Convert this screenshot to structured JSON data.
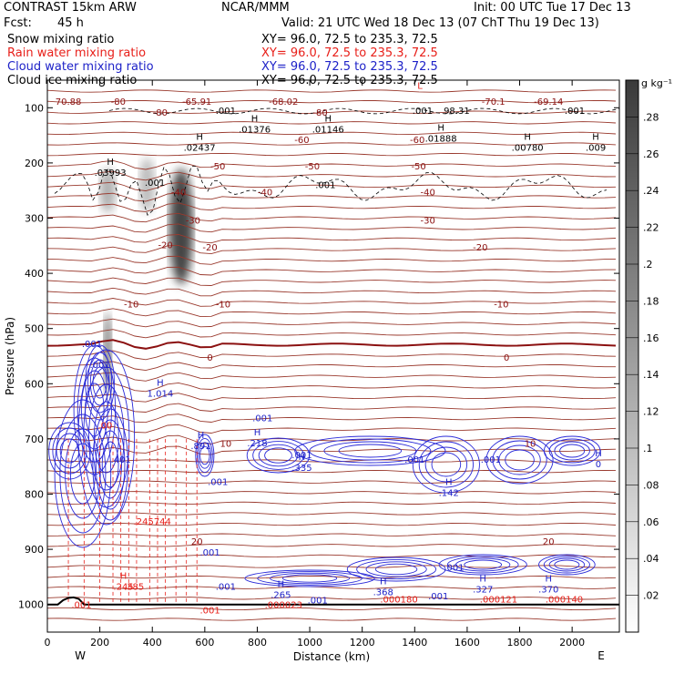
{
  "header": {
    "model": "CONTRAST 15km ARW",
    "org": "NCAR/MMM",
    "init": "Init: 00 UTC Tue 17 Dec 13",
    "fcst_label": "Fcst:",
    "fcst_value": "45 h",
    "valid": "Valid: 21 UTC Wed 18 Dec 13 (07 ChT Thu 19 Dec 13)"
  },
  "fields": [
    {
      "name": "Snow mixing ratio",
      "color": "#000000",
      "xs": "XY=   96.0, 72.5 to 235.3, 72.5"
    },
    {
      "name": "Rain water mixing ratio",
      "color": "#e8201a",
      "xs": "XY=   96.0, 72.5 to 235.3, 72.5"
    },
    {
      "name": "Cloud water mixing ratio",
      "color": "#1e22c8",
      "xs": "XY=   96.0, 72.5 to 235.3, 72.5"
    },
    {
      "name": "Cloud ice mixing ratio",
      "color": "#000000",
      "xs": "XY=   96.0, 72.5 to 235.3, 72.5"
    }
  ],
  "chart_data": {
    "type": "contour",
    "xlabel": "Distance (km)",
    "ylabel": "Pressure (hPa)",
    "xlim": [
      0,
      2180
    ],
    "ylim": [
      1050,
      50
    ],
    "x_ticks": [
      0,
      200,
      400,
      600,
      800,
      1000,
      1200,
      1400,
      1600,
      1800,
      2000
    ],
    "y_ticks": [
      100,
      200,
      300,
      400,
      500,
      600,
      700,
      800,
      900,
      1000
    ],
    "x_end_labels": {
      "left": "W",
      "right": "E"
    },
    "colorbar": {
      "unit": "g kg⁻¹",
      "ticks": [
        ".02",
        ".04",
        ".06",
        ".08",
        ".1",
        ".12",
        ".14",
        ".16",
        ".18",
        ".2",
        ".22",
        ".24",
        ".26",
        ".28"
      ]
    },
    "temperature_contour_labels": [
      {
        "x": 80,
        "p": 88,
        "text": "70.88"
      },
      {
        "x": 270,
        "p": 88,
        "text": "-80"
      },
      {
        "x": 570,
        "p": 88,
        "text": "-65.91"
      },
      {
        "x": 900,
        "p": 88,
        "text": "-68.02"
      },
      {
        "x": 1700,
        "p": 88,
        "text": "-70.1"
      },
      {
        "x": 1910,
        "p": 88,
        "text": "-69.14"
      },
      {
        "x": 430,
        "p": 108,
        "text": "-80"
      },
      {
        "x": 1040,
        "p": 108,
        "text": "-80"
      },
      {
        "x": 970,
        "p": 157,
        "text": "-60"
      },
      {
        "x": 1410,
        "p": 157,
        "text": "-60"
      },
      {
        "x": 650,
        "p": 205,
        "text": "-50"
      },
      {
        "x": 1010,
        "p": 205,
        "text": "-50"
      },
      {
        "x": 1415,
        "p": 205,
        "text": "-50"
      },
      {
        "x": 500,
        "p": 252,
        "text": "-40"
      },
      {
        "x": 830,
        "p": 252,
        "text": "-40"
      },
      {
        "x": 1450,
        "p": 252,
        "text": "-40"
      },
      {
        "x": 555,
        "p": 303,
        "text": "-30"
      },
      {
        "x": 1450,
        "p": 303,
        "text": "-30"
      },
      {
        "x": 450,
        "p": 348,
        "text": "-20"
      },
      {
        "x": 620,
        "p": 352,
        "text": "-20"
      },
      {
        "x": 1650,
        "p": 352,
        "text": "-20"
      },
      {
        "x": 320,
        "p": 455,
        "text": "-10"
      },
      {
        "x": 670,
        "p": 455,
        "text": "-10"
      },
      {
        "x": 1730,
        "p": 455,
        "text": "-10"
      },
      {
        "x": 620,
        "p": 552,
        "text": "0"
      },
      {
        "x": 1750,
        "p": 552,
        "text": "0"
      },
      {
        "x": 680,
        "p": 708,
        "text": "10"
      },
      {
        "x": 1840,
        "p": 708,
        "text": "10"
      },
      {
        "x": 570,
        "p": 885,
        "text": "20"
      },
      {
        "x": 1910,
        "p": 885,
        "text": "20"
      }
    ],
    "maxima_labels": [
      {
        "x": 790,
        "p": 132,
        "h": "H",
        "v": ".01376",
        "color": "#000000"
      },
      {
        "x": 1070,
        "p": 132,
        "h": "H",
        "v": ".01146",
        "color": "#000000"
      },
      {
        "x": 1500,
        "p": 148,
        "h": "H",
        "v": ".01888",
        "color": "#000000"
      },
      {
        "x": 1830,
        "p": 165,
        "h": "H",
        "v": ".00780",
        "color": "#000000"
      },
      {
        "x": 2090,
        "p": 165,
        "h": "H",
        "v": ".009",
        "color": "#000000"
      },
      {
        "x": 580,
        "p": 165,
        "h": "H",
        "v": ".02437",
        "color": "#000000"
      },
      {
        "x": 240,
        "p": 210,
        "h": "H",
        "v": ".03993",
        "color": "#000000"
      },
      {
        "x": 680,
        "p": 98,
        "h": "",
        "v": ".001",
        "color": "#000000"
      },
      {
        "x": 1430,
        "p": 98,
        "h": "",
        "v": ".001",
        "color": "#000000"
      },
      {
        "x": 2010,
        "p": 98,
        "h": "",
        "v": ".001",
        "color": "#000000"
      },
      {
        "x": 1560,
        "p": 98,
        "h": "",
        "v": "98.31",
        "color": "#000000"
      },
      {
        "x": 410,
        "p": 228,
        "h": "",
        "v": ".001",
        "color": "#000000"
      },
      {
        "x": 1060,
        "p": 232,
        "h": "",
        "v": ".001",
        "color": "#000000"
      },
      {
        "x": 170,
        "p": 520,
        "h": "",
        "v": ".001",
        "color": "#1e22c8"
      },
      {
        "x": 200,
        "p": 558,
        "h": "",
        "v": ".001",
        "color": "#1e22c8"
      },
      {
        "x": 430,
        "p": 610,
        "h": "H",
        "v": "1.014",
        "color": "#1e22c8"
      },
      {
        "x": 820,
        "p": 655,
        "h": "",
        "v": ".001",
        "color": "#1e22c8"
      },
      {
        "x": 800,
        "p": 700,
        "h": "H",
        "v": ".218",
        "color": "#1e22c8"
      },
      {
        "x": 585,
        "p": 705,
        "h": "H",
        "v": ".891",
        "color": "#1e22c8"
      },
      {
        "x": 970,
        "p": 722,
        "h": "",
        "v": ".001",
        "color": "#1e22c8"
      },
      {
        "x": 970,
        "p": 745,
        "h": "H",
        "v": ".335",
        "color": "#1e22c8"
      },
      {
        "x": 1400,
        "p": 730,
        "h": "",
        "v": ".001",
        "color": "#1e22c8"
      },
      {
        "x": 1690,
        "p": 730,
        "h": "",
        "v": ".001",
        "color": "#1e22c8"
      },
      {
        "x": 2100,
        "p": 738,
        "h": "H",
        "v": "0",
        "color": "#1e22c8"
      },
      {
        "x": 280,
        "p": 730,
        "h": "",
        "v": ".401",
        "color": "#1e22c8"
      },
      {
        "x": 650,
        "p": 770,
        "h": "",
        "v": ".001",
        "color": "#1e22c8"
      },
      {
        "x": 1530,
        "p": 790,
        "h": "H",
        "v": ".142",
        "color": "#1e22c8"
      },
      {
        "x": 400,
        "p": 842,
        "h": "",
        "v": ".245744",
        "color": "#e8201a"
      },
      {
        "x": 620,
        "p": 898,
        "h": "",
        "v": ".001",
        "color": "#1e22c8"
      },
      {
        "x": 1550,
        "p": 925,
        "h": "",
        "v": ".001",
        "color": "#1e22c8"
      },
      {
        "x": 890,
        "p": 975,
        "h": "H",
        "v": ".265",
        "color": "#1e22c8"
      },
      {
        "x": 1280,
        "p": 970,
        "h": "H",
        "v": ".368",
        "color": "#1e22c8"
      },
      {
        "x": 1660,
        "p": 965,
        "h": "H",
        "v": ".327",
        "color": "#1e22c8"
      },
      {
        "x": 1910,
        "p": 965,
        "h": "H",
        "v": ".370",
        "color": "#1e22c8"
      },
      {
        "x": 1490,
        "p": 977,
        "h": "",
        "v": ".001",
        "color": "#1e22c8"
      },
      {
        "x": 1030,
        "p": 985,
        "h": "",
        "v": ".001",
        "color": "#1e22c8"
      },
      {
        "x": 680,
        "p": 960,
        "h": "",
        "v": ".001",
        "color": "#1e22c8"
      },
      {
        "x": 290,
        "p": 960,
        "h": "H",
        "v": ".245",
        "color": "#e8201a"
      },
      {
        "x": 330,
        "p": 960,
        "h": "",
        "v": ".385",
        "color": "#e8201a"
      },
      {
        "x": 220,
        "p": 668,
        "h": "",
        "v": ".00",
        "color": "#e8201a"
      },
      {
        "x": 130,
        "p": 993,
        "h": "",
        "v": ".001",
        "color": "#e8201a"
      },
      {
        "x": 620,
        "p": 1003,
        "h": "",
        "v": ".001",
        "color": "#e8201a"
      },
      {
        "x": 1340,
        "p": 983,
        "h": "",
        "v": ".000180",
        "color": "#e8201a"
      },
      {
        "x": 1720,
        "p": 983,
        "h": "",
        "v": ".000121",
        "color": "#e8201a"
      },
      {
        "x": 1970,
        "p": 983,
        "h": "",
        "v": ".000140",
        "color": "#e8201a"
      },
      {
        "x": 900,
        "p": 993,
        "h": "",
        "v": ".000023",
        "color": "#e8201a"
      },
      {
        "x": 1420,
        "p": 72,
        "h": "L",
        "v": "",
        "color": "#e8201a"
      }
    ],
    "snow_shading": [
      {
        "x": 230,
        "p_top": 210,
        "p_bot": 290,
        "width_km": 60,
        "value": 0.12
      },
      {
        "x": 380,
        "p_top": 190,
        "p_bot": 290,
        "width_km": 60,
        "value": 0.1
      },
      {
        "x": 510,
        "p_top": 210,
        "p_bot": 420,
        "width_km": 90,
        "value": 0.28
      },
      {
        "x": 230,
        "p_top": 470,
        "p_bot": 620,
        "width_km": 30,
        "value": 0.22
      }
    ]
  }
}
